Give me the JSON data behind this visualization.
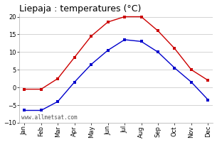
{
  "title": "Liepaja : temperatures (°C)",
  "months": [
    "Jan",
    "Feb",
    "Mar",
    "Apr",
    "May",
    "Jun",
    "Jul",
    "Aug",
    "Sep",
    "Oct",
    "Nov",
    "Dec"
  ],
  "max_temps": [
    -0.5,
    -0.5,
    2.5,
    8.5,
    14.5,
    18.5,
    20.0,
    20.0,
    16.0,
    11.0,
    5.0,
    2.0
  ],
  "min_temps": [
    -6.5,
    -6.5,
    -4.0,
    1.5,
    6.5,
    10.5,
    13.5,
    13.0,
    10.0,
    5.5,
    1.5,
    -3.5
  ],
  "max_color": "#cc0000",
  "min_color": "#0000cc",
  "ylim": [
    -10,
    21
  ],
  "yticks": [
    -10,
    -5,
    0,
    5,
    10,
    15,
    20
  ],
  "bg_color": "#ffffff",
  "grid_color": "#cccccc",
  "watermark": "www.allmetsat.com",
  "title_fontsize": 9,
  "tick_fontsize": 6,
  "watermark_fontsize": 5.5
}
